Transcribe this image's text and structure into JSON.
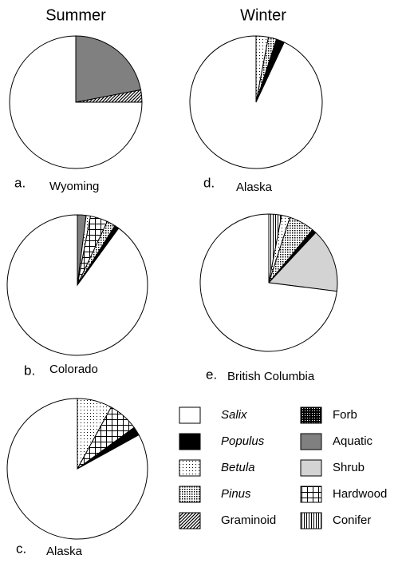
{
  "column_titles": [
    "Summer",
    "Winter"
  ],
  "legend": {
    "entries": [
      {
        "name": "Salix",
        "pattern": "white",
        "italic": true
      },
      {
        "name": "Populus",
        "pattern": "black",
        "italic": true
      },
      {
        "name": "Betula",
        "pattern": "sparse-dots",
        "italic": true
      },
      {
        "name": "Pinus",
        "pattern": "dense-dots",
        "italic": true
      },
      {
        "name": "Graminoid",
        "pattern": "diagonal",
        "italic": false
      },
      {
        "name": "Forb",
        "pattern": "black-dots",
        "italic": false
      },
      {
        "name": "Aquatic",
        "pattern": "gray",
        "italic": false
      },
      {
        "name": "Shrub",
        "pattern": "light-gray",
        "italic": false
      },
      {
        "name": "Hardwood",
        "pattern": "grid",
        "italic": false
      },
      {
        "name": "Conifer",
        "pattern": "vertical",
        "italic": false
      }
    ]
  },
  "chart_data": [
    {
      "type": "pie",
      "letter": "a.",
      "title": "Wyoming",
      "categories": [
        "Aquatic",
        "Graminoid",
        "Salix"
      ],
      "values": [
        22,
        3,
        75
      ]
    },
    {
      "type": "pie",
      "letter": "b.",
      "title": "Colorado",
      "categories": [
        "Aquatic",
        "Betula",
        "Hardwood",
        "Pinus",
        "Populus",
        "Salix"
      ],
      "values": [
        2,
        1,
        4,
        2,
        1,
        90
      ]
    },
    {
      "type": "pie",
      "letter": "c.",
      "title": "Alaska",
      "categories": [
        "Betula",
        "Hardwood",
        "Populus",
        "Salix"
      ],
      "values": [
        8,
        7,
        2,
        83
      ]
    },
    {
      "type": "pie",
      "letter": "d.",
      "title": "Alaska",
      "categories": [
        "Betula",
        "Pinus",
        "Populus",
        "Salix"
      ],
      "values": [
        3,
        2,
        2,
        93
      ]
    },
    {
      "type": "pie",
      "letter": "e.",
      "title": "British Columbia",
      "categories": [
        "Conifer",
        "Betula",
        "Pinus",
        "Populus",
        "Shrub",
        "Salix"
      ],
      "values": [
        3,
        2,
        6,
        1,
        15,
        73
      ]
    }
  ]
}
